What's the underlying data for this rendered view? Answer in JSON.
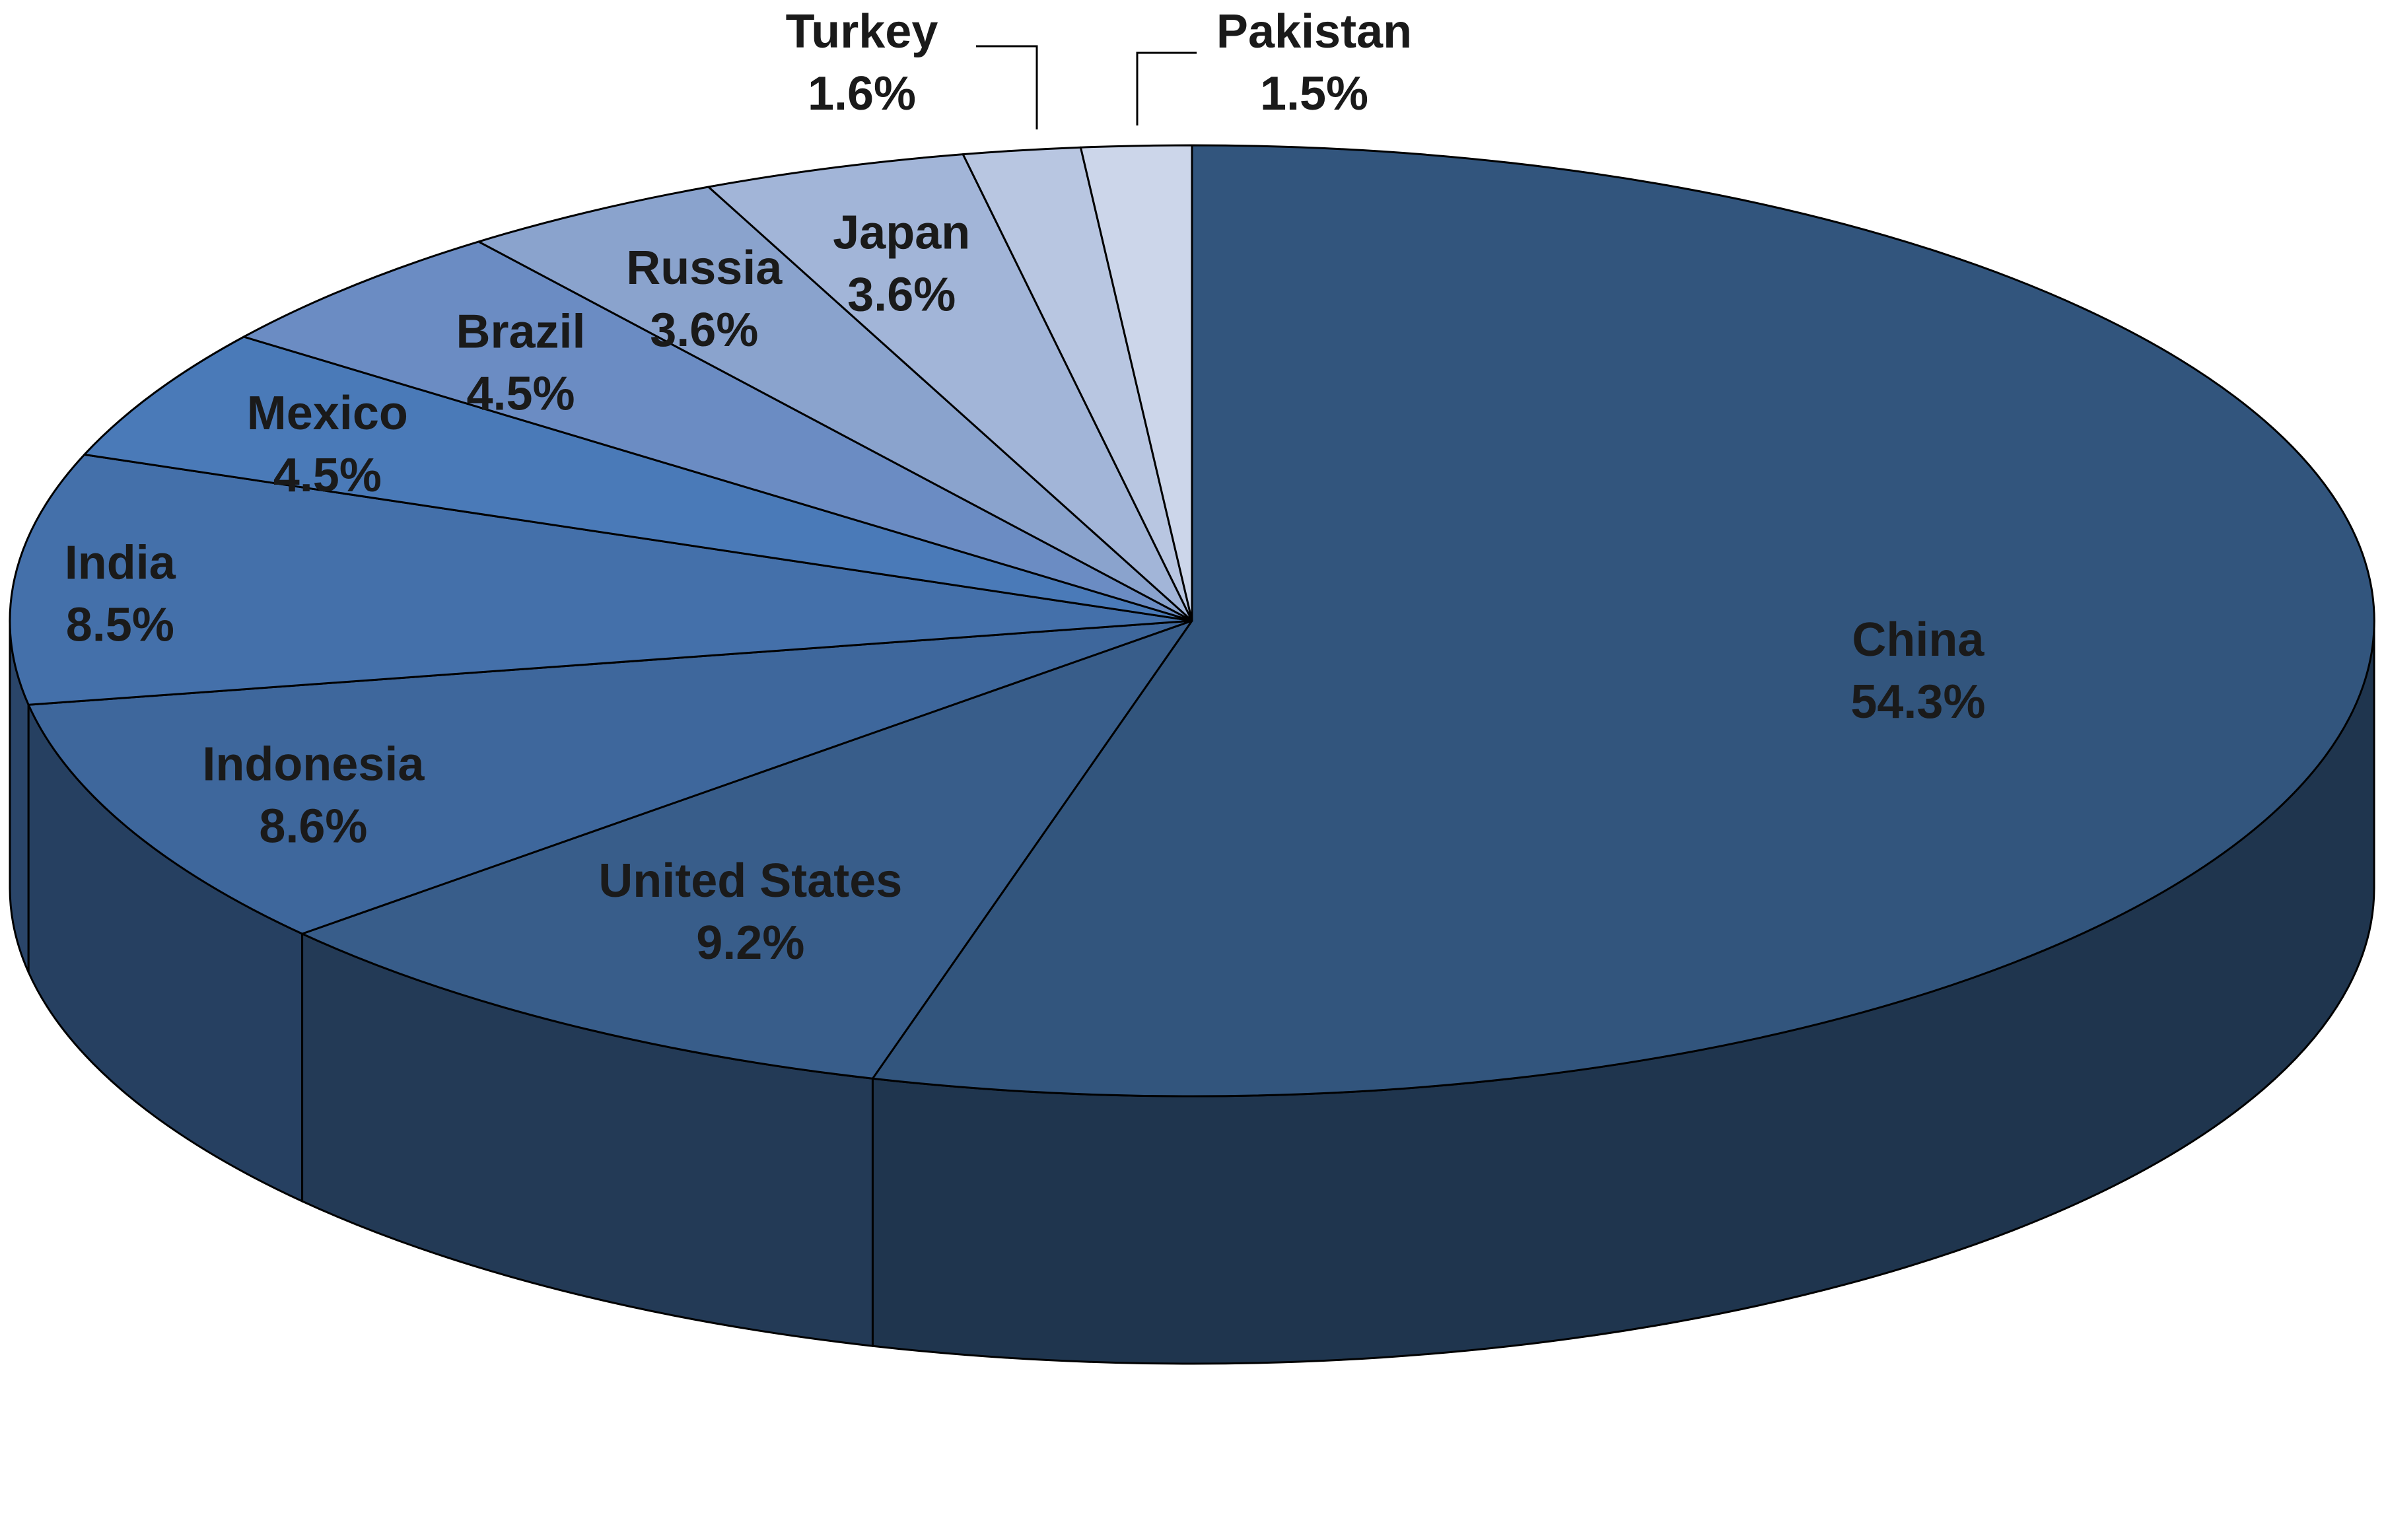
{
  "chart_data": {
    "type": "pie",
    "title": "",
    "style": "3d",
    "slices": [
      {
        "label": "China",
        "percent": "54.3%",
        "value": 54.3,
        "color": "#32557d"
      },
      {
        "label": "United States",
        "percent": "9.2%",
        "value": 9.2,
        "color": "#385d8a"
      },
      {
        "label": "Indonesia",
        "percent": "8.6%",
        "value": 8.6,
        "color": "#3e679c"
      },
      {
        "label": "India",
        "percent": "8.5%",
        "value": 8.5,
        "color": "#4470aa"
      },
      {
        "label": "Mexico",
        "percent": "4.5%",
        "value": 4.5,
        "color": "#4a7ab8"
      },
      {
        "label": "Brazil",
        "percent": "4.5%",
        "value": 4.5,
        "color": "#6b8cc3"
      },
      {
        "label": "Russia",
        "percent": "3.6%",
        "value": 3.6,
        "color": "#8aa3cd"
      },
      {
        "label": "Japan",
        "percent": "3.6%",
        "value": 3.6,
        "color": "#a2b5d8"
      },
      {
        "label": "Turkey",
        "percent": "1.6%",
        "value": 1.6,
        "color": "#b8c6e1"
      },
      {
        "label": "Pakistan",
        "percent": "1.5%",
        "value": 1.5,
        "color": "#ccd6ea"
      }
    ]
  }
}
